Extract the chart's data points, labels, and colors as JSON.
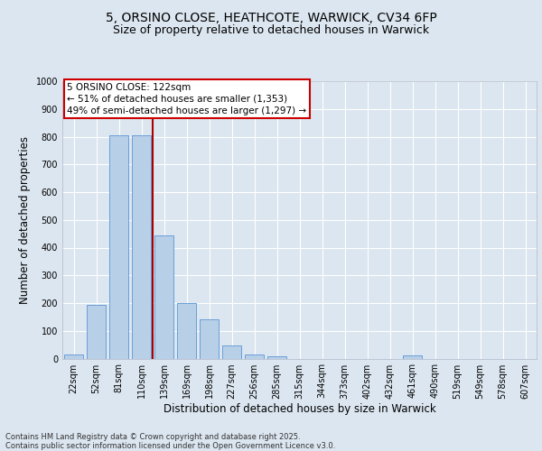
{
  "title_line1": "5, ORSINO CLOSE, HEATHCOTE, WARWICK, CV34 6FP",
  "title_line2": "Size of property relative to detached houses in Warwick",
  "xlabel": "Distribution of detached houses by size in Warwick",
  "ylabel": "Number of detached properties",
  "bar_color": "#b8cfe8",
  "bar_edge_color": "#6a9fd8",
  "categories": [
    "22sqm",
    "52sqm",
    "81sqm",
    "110sqm",
    "139sqm",
    "169sqm",
    "198sqm",
    "227sqm",
    "256sqm",
    "285sqm",
    "315sqm",
    "344sqm",
    "373sqm",
    "402sqm",
    "432sqm",
    "461sqm",
    "490sqm",
    "519sqm",
    "549sqm",
    "578sqm",
    "607sqm"
  ],
  "values": [
    15,
    193,
    805,
    805,
    445,
    200,
    143,
    47,
    15,
    8,
    0,
    0,
    0,
    0,
    0,
    10,
    0,
    0,
    0,
    0,
    0
  ],
  "ylim": [
    0,
    1000
  ],
  "yticks": [
    0,
    100,
    200,
    300,
    400,
    500,
    600,
    700,
    800,
    900,
    1000
  ],
  "vline_x_index": 3.5,
  "vline_color": "#aa0000",
  "annotation_title": "5 ORSINO CLOSE: 122sqm",
  "annotation_line2": "← 51% of detached houses are smaller (1,353)",
  "annotation_line3": "49% of semi-detached houses are larger (1,297) →",
  "annotation_box_color": "#ffffff",
  "annotation_box_edge": "#cc0000",
  "bg_color": "#dce6f0",
  "plot_bg_color": "#dce6f0",
  "grid_color": "#ffffff",
  "title_fontsize": 10,
  "subtitle_fontsize": 9,
  "tick_fontsize": 7,
  "label_fontsize": 8.5,
  "annotation_fontsize": 7.5,
  "footer_line1": "Contains HM Land Registry data © Crown copyright and database right 2025.",
  "footer_line2": "Contains public sector information licensed under the Open Government Licence v3.0.",
  "footer_fontsize": 6
}
